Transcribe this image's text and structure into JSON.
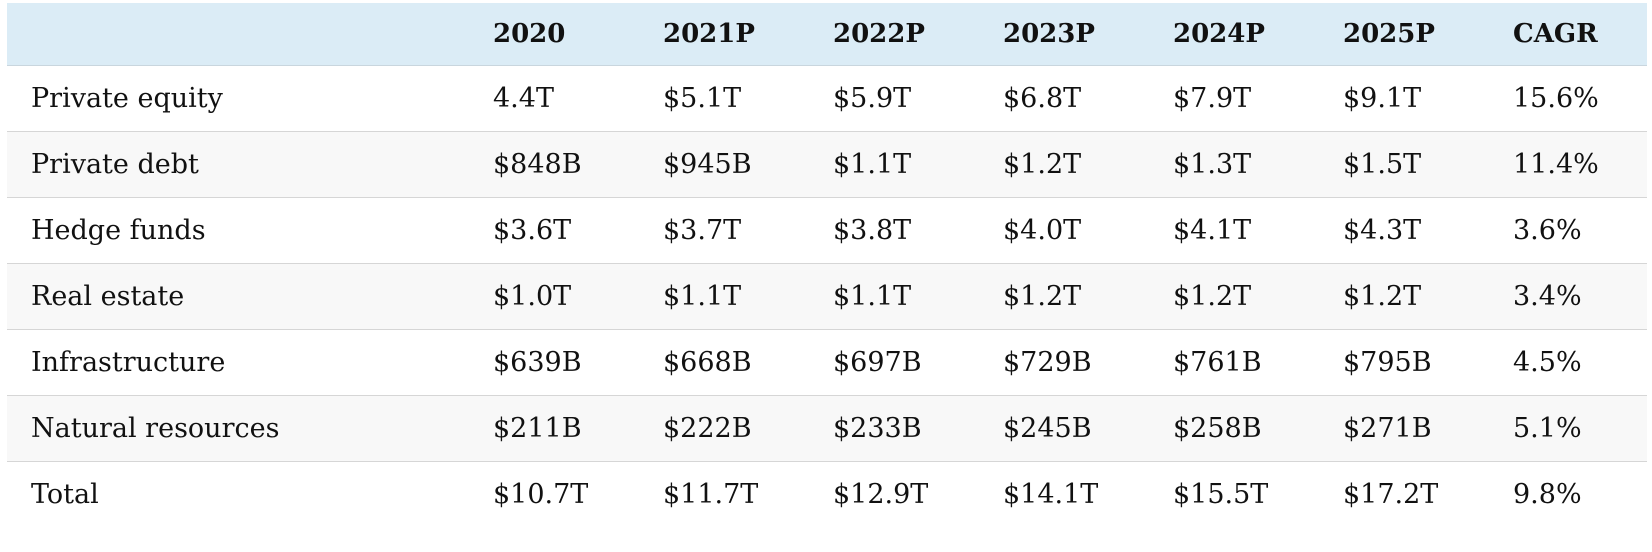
{
  "table": {
    "columns": [
      "",
      "2020",
      "2021P",
      "2022P",
      "2023P",
      "2024P",
      "2025P",
      "CAGR"
    ],
    "rows": [
      {
        "label": "Private equity",
        "values": [
          "4.4T",
          "$5.1T",
          "$5.9T",
          "$6.8T",
          "$7.9T",
          "$9.1T",
          "15.6%"
        ]
      },
      {
        "label": "Private debt",
        "values": [
          "$848B",
          "$945B",
          "$1.1T",
          "$1.2T",
          "$1.3T",
          "$1.5T",
          "11.4%"
        ]
      },
      {
        "label": "Hedge funds",
        "values": [
          "$3.6T",
          "$3.7T",
          "$3.8T",
          "$4.0T",
          "$4.1T",
          "$4.3T",
          "3.6%"
        ]
      },
      {
        "label": "Real estate",
        "values": [
          "$1.0T",
          "$1.1T",
          "$1.1T",
          "$1.2T",
          "$1.2T",
          "$1.2T",
          "3.4%"
        ]
      },
      {
        "label": "Infrastructure",
        "values": [
          "$639B",
          "$668B",
          "$697B",
          "$729B",
          "$761B",
          "$795B",
          "4.5%"
        ]
      },
      {
        "label": "Natural resources",
        "values": [
          "$211B",
          "$222B",
          "$233B",
          "$245B",
          "$258B",
          "$271B",
          "5.1%"
        ]
      },
      {
        "label": "Total",
        "values": [
          "$10.7T",
          "$11.7T",
          "$12.9T",
          "$14.1T",
          "$15.5T",
          "$17.2T",
          "9.8%"
        ]
      }
    ]
  },
  "colors": {
    "header_background": "#dbecf6",
    "row_alt_background": "#f8f8f8",
    "row_divider": "#d6d6d6"
  }
}
